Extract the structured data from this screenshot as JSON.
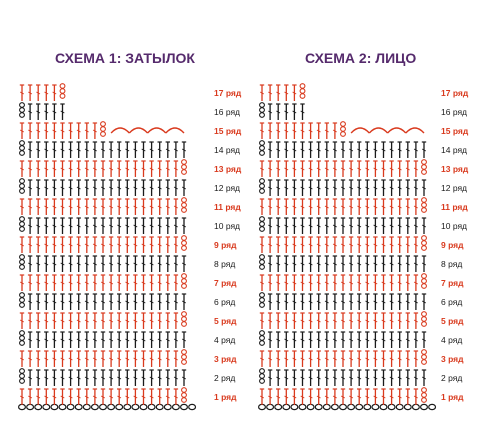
{
  "colors": {
    "title": "#552a6c",
    "red_stitch": "#d93a1e",
    "black_stitch": "#1a1a1a",
    "chain": "#1a1a1a",
    "red_label": "#d93a1e",
    "black_label": "#1a1a1a"
  },
  "charts": [
    {
      "title": "СХЕМА 1: ЗАТЫЛОК",
      "row_labels": [
        "1 ряд",
        "2 ряд",
        "3 ряд",
        "4 ряд",
        "5 ряд",
        "6 ряд",
        "7 ряд",
        "8 ряд",
        "9 ряд",
        "10 ряд",
        "11 ряд",
        "12 ряд",
        "13 ряд",
        "14 ряд",
        "15 ряд",
        "16 ряд",
        "17 ряд"
      ],
      "stitches_per_row": [
        21,
        21,
        21,
        21,
        21,
        21,
        21,
        21,
        21,
        21,
        21,
        21,
        21,
        21,
        11,
        6,
        6
      ],
      "top_arches": 4
    },
    {
      "title": "СХЕМА 2: ЛИЦО",
      "row_labels": [
        "1 ряд",
        "2 ряд",
        "3 ряд",
        "4 ряд",
        "5 ряд",
        "6 ряд",
        "7 ряд",
        "8 ряд",
        "9 ряд",
        "10 ряд",
        "11 ряд",
        "12 ряд",
        "13 ряд",
        "14 ряд",
        "15 ряд",
        "16 ряд",
        "17 ряд"
      ],
      "stitches_per_row": [
        21,
        21,
        21,
        21,
        21,
        21,
        21,
        21,
        21,
        21,
        21,
        21,
        21,
        21,
        11,
        6,
        6
      ],
      "top_arches": 4
    }
  ]
}
